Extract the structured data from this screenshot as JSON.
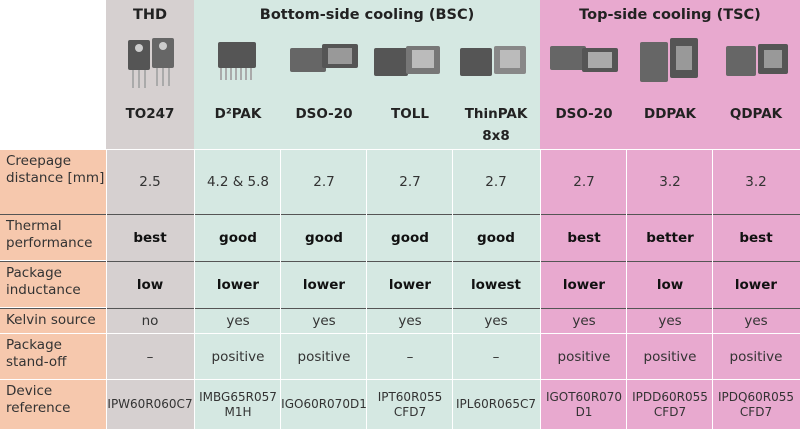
{
  "groups": {
    "thd": "THD",
    "bsc": "Bottom-side cooling (BSC)",
    "tsc": "Top-side cooling (TSC)"
  },
  "packages": [
    "TO247",
    "D²PAK",
    "DSO-20",
    "TOLL",
    "ThinPAK 8x8",
    "DSO-20",
    "DDPAK",
    "QDPAK"
  ],
  "rows": [
    {
      "label": "Creepage distance [mm]",
      "values": [
        "2.5",
        "4.2 & 5.8",
        "2.7",
        "2.7",
        "2.7",
        "2.7",
        "3.2",
        "3.2"
      ]
    },
    {
      "label": "Thermal performance",
      "values": [
        "best",
        "good",
        "good",
        "good",
        "good",
        "best",
        "better",
        "best"
      ]
    },
    {
      "label": "Package inductance",
      "values": [
        "low",
        "lower",
        "lower",
        "lower",
        "lowest",
        "lower",
        "low",
        "lower"
      ]
    },
    {
      "label": "Kelvin source",
      "values": [
        "no",
        "yes",
        "yes",
        "yes",
        "yes",
        "yes",
        "yes",
        "yes"
      ]
    },
    {
      "label": "Package stand-off",
      "values": [
        "–",
        "positive",
        "positive",
        "–",
        "–",
        "positive",
        "positive",
        "positive"
      ]
    },
    {
      "label": "Device reference",
      "values": [
        "IPW60R060C7",
        "IMBG65R057 M1H",
        "IGO60R070D1",
        "IPT60R055 CFD7",
        "IPL60R065C7",
        "IGOT60R070 D1",
        "IPDD60R055 CFD7",
        "IPDQ60R055 CFD7"
      ]
    }
  ],
  "colors": {
    "thd_bg": "#d6d0d0",
    "bsc_bg": "#d5e8e2",
    "tsc_bg": "#e8a9cf",
    "label_bg": "#f6c8ad"
  }
}
